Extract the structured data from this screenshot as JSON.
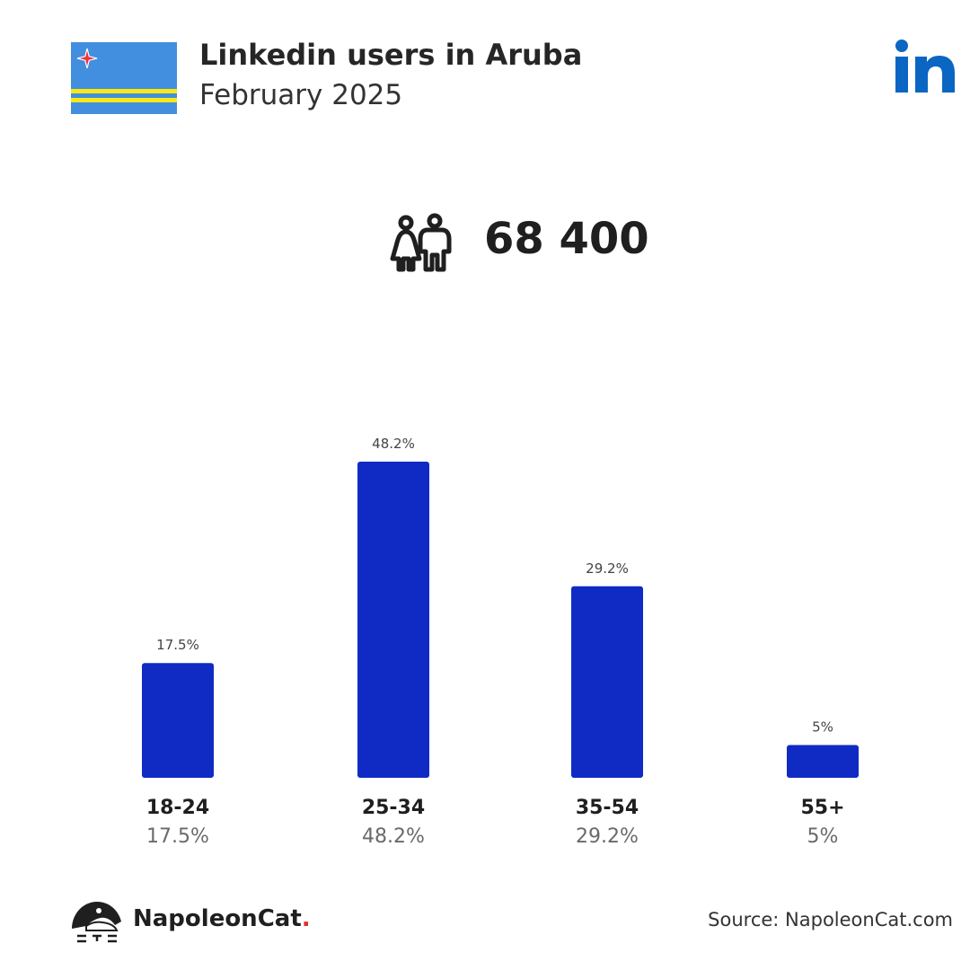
{
  "header": {
    "title": "Linkedin users in Aruba",
    "subtitle": "February 2025",
    "flag_icon": "aruba-flag-icon",
    "logo_icon": "linkedin-logo-icon"
  },
  "total": {
    "icon": "people-icon",
    "value": "68 400"
  },
  "colors": {
    "bar": "#0f2bc4",
    "linkedin": "#0a66c2",
    "flag_blue": "#418fde",
    "flag_yellow": "#f9e814",
    "flag_red": "#ef3340"
  },
  "chart_data": {
    "type": "bar",
    "categories": [
      "18-24",
      "25-34",
      "35-54",
      "55+"
    ],
    "values": [
      17.5,
      48.2,
      29.2,
      5
    ],
    "value_labels": [
      "17.5%",
      "48.2%",
      "29.2%",
      "5%"
    ],
    "title": "",
    "xlabel": "",
    "ylabel": "",
    "ylim": [
      0,
      48.2
    ],
    "grid": false
  },
  "footer": {
    "brand_name": "NapoleonCat",
    "brand_dot": ".",
    "source": "Source: NapoleonCat.com"
  }
}
